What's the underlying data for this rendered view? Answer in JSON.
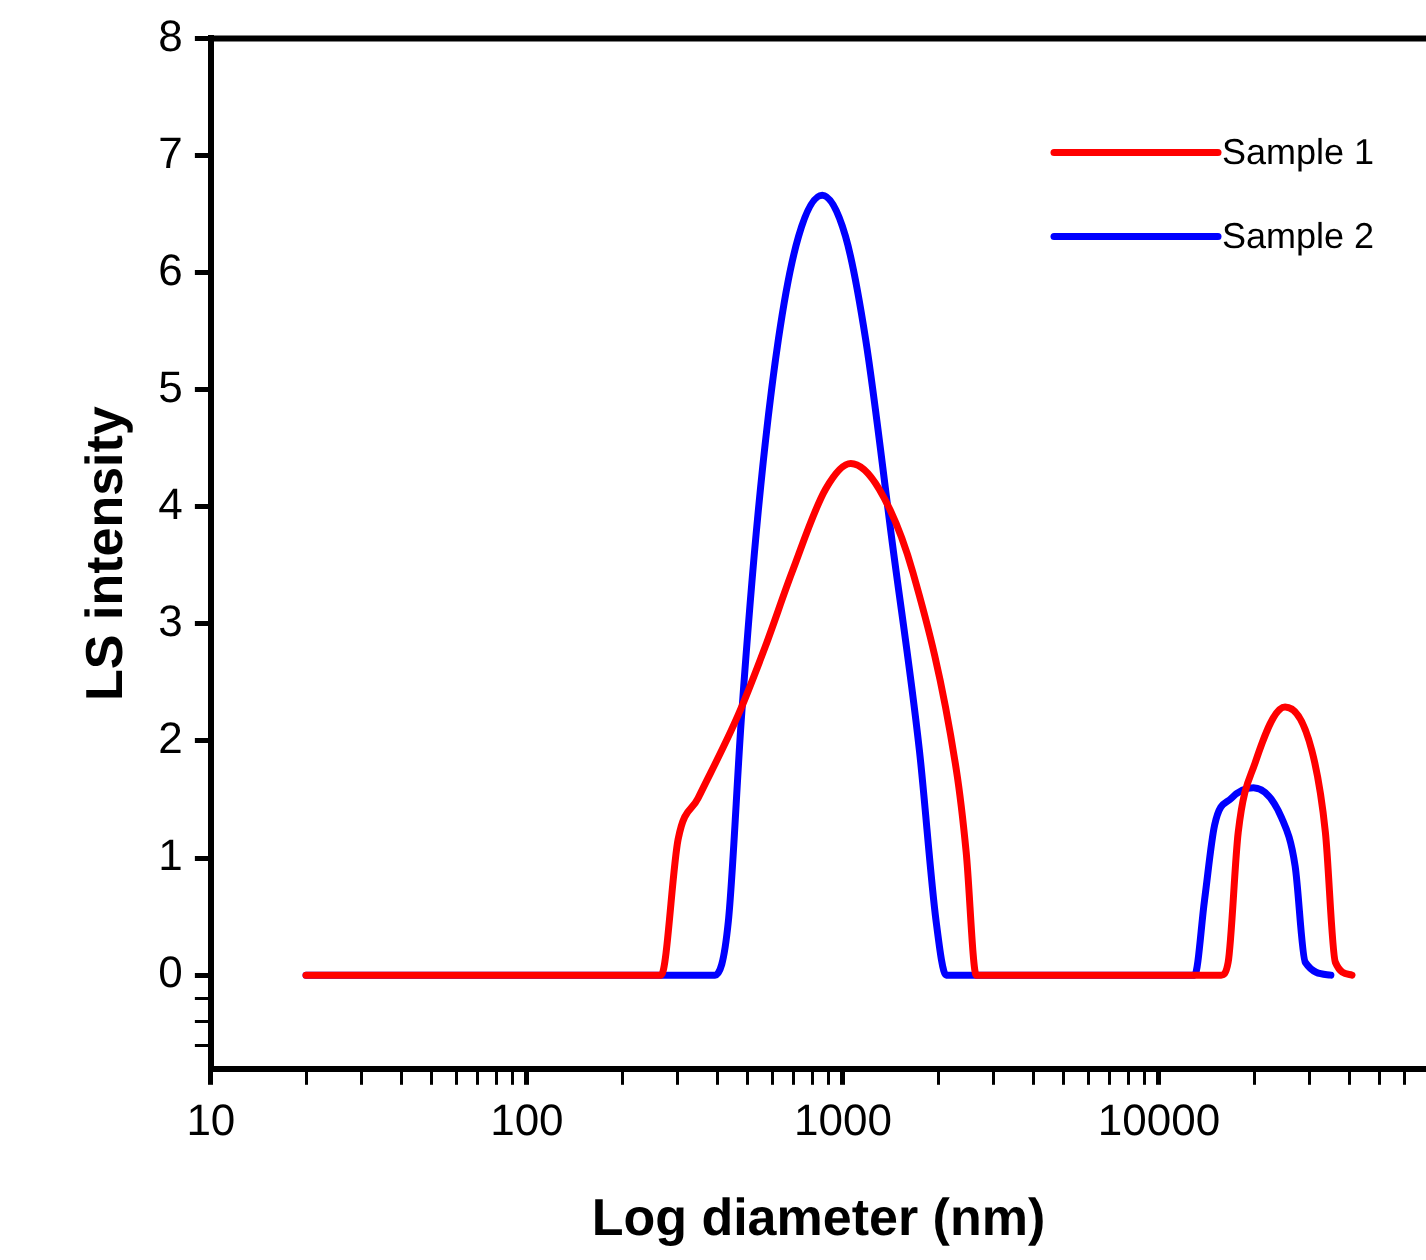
{
  "chart_data": {
    "type": "line",
    "xlabel": "Log diameter (nm)",
    "ylabel": "LS intensity",
    "log": "x",
    "xlim": [
      10,
      70000
    ],
    "ylim": [
      -0.8,
      8
    ],
    "xticks": [
      10,
      {
        "value": 20,
        "label": null
      },
      {
        "value": 30,
        "label": null
      },
      {
        "value": 40,
        "label": null
      },
      {
        "value": 50,
        "label": null
      },
      {
        "value": 60,
        "label": null
      },
      {
        "value": 70,
        "label": null
      },
      {
        "value": 80,
        "label": null
      },
      {
        "value": 90,
        "label": null
      },
      100,
      {
        "value": 200,
        "label": null
      },
      {
        "value": 300,
        "label": null
      },
      {
        "value": 400,
        "label": null
      },
      {
        "value": 500,
        "label": null
      },
      {
        "value": 600,
        "label": null
      },
      {
        "value": 700,
        "label": null
      },
      {
        "value": 800,
        "label": null
      },
      {
        "value": 900,
        "label": null
      },
      1000,
      {
        "value": 2000,
        "label": null
      },
      {
        "value": 3000,
        "label": null
      },
      {
        "value": 4000,
        "label": null
      },
      {
        "value": 5000,
        "label": null
      },
      {
        "value": 6000,
        "label": null
      },
      {
        "value": 7000,
        "label": null
      },
      {
        "value": 8000,
        "label": null
      },
      {
        "value": 9000,
        "label": null
      },
      10000,
      {
        "value": 20000,
        "label": null
      },
      {
        "value": 30000,
        "label": null
      },
      {
        "value": 40000,
        "label": null
      },
      {
        "value": 50000,
        "label": null
      },
      {
        "value": 60000,
        "label": null
      }
    ],
    "yticks": [
      {
        "value": -0.6,
        "label": null
      },
      {
        "value": -0.4,
        "label": null
      },
      {
        "value": -0.2,
        "label": null
      },
      0,
      1,
      2,
      3,
      4,
      5,
      6,
      7,
      8
    ],
    "legend": "top right",
    "grid": false,
    "marker": "none",
    "line_style": "solid",
    "series": [
      {
        "name": "Sample 1",
        "color": "#ff0000",
        "x": [
          20,
          266,
          301,
          348,
          466,
          567,
          690,
          881,
          1059,
          1303,
          1665,
          2286,
          2455,
          2642,
          15740,
          16560,
          17820,
          20140,
          25070,
          30460,
          33630,
          36160,
          40830
        ],
        "values": [
          0,
          0,
          1.16,
          1.51,
          2.22,
          2.8,
          3.44,
          4.15,
          4.37,
          4.15,
          3.44,
          1.75,
          1.05,
          0,
          0,
          0.11,
          1.22,
          1.81,
          2.29,
          1.92,
          1.22,
          0.11,
          0
        ]
      },
      {
        "name": "Sample 2",
        "color": "#0000ff",
        "x": [
          20,
          394,
          434,
          478,
          540,
          625,
          724,
          860,
          1019,
          1180,
          1435,
          1746,
          1972,
          2122,
          12970,
          13940,
          15000,
          16940,
          19910,
          24470,
          26980,
          29040,
          35000
        ],
        "values": [
          0,
          0,
          0.46,
          2.22,
          3.97,
          5.43,
          6.31,
          6.66,
          6.31,
          5.43,
          3.68,
          1.92,
          0.46,
          0,
          0,
          0.64,
          1.28,
          1.51,
          1.6,
          1.34,
          0.93,
          0.11,
          0
        ]
      }
    ]
  }
}
